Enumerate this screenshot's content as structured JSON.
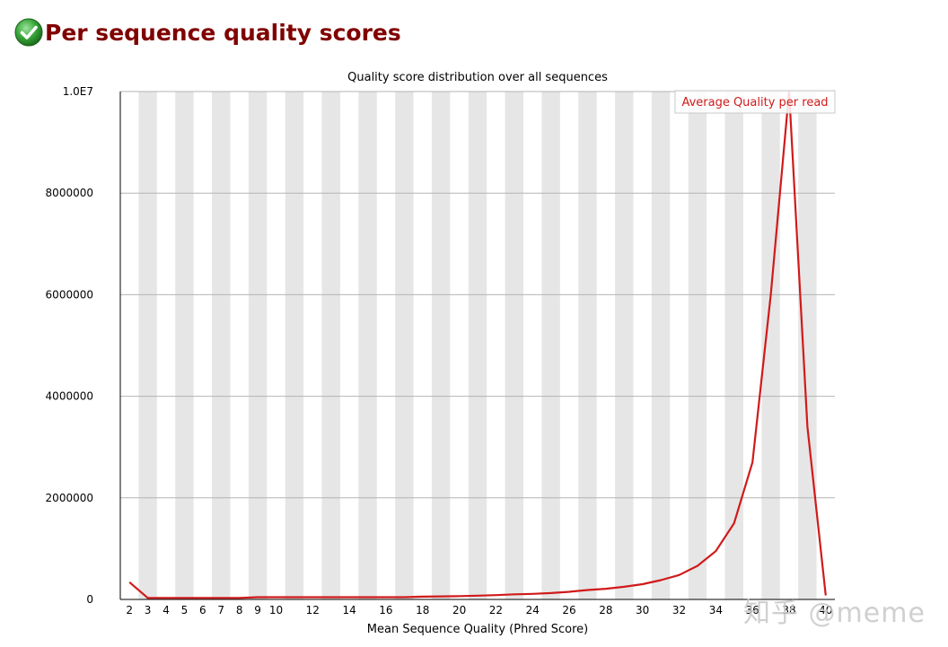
{
  "header": {
    "title": "Per sequence quality scores",
    "status_icon": "check-circle-icon",
    "status_color": "#2e8b2e"
  },
  "watermark": "知乎 @meme",
  "chart_data": {
    "type": "line",
    "title": "Quality score distribution over all sequences",
    "xlabel": "Mean Sequence Quality (Phred Score)",
    "ylabel": "",
    "xlim": [
      2,
      40
    ],
    "ylim": [
      0,
      10000000
    ],
    "yticks": [
      {
        "value": 0,
        "label": "0"
      },
      {
        "value": 2000000,
        "label": "2000000"
      },
      {
        "value": 4000000,
        "label": "4000000"
      },
      {
        "value": 6000000,
        "label": "6000000"
      },
      {
        "value": 8000000,
        "label": "8000000"
      },
      {
        "value": 10000000,
        "label": "1.0E7"
      }
    ],
    "xticks": [
      2,
      3,
      4,
      5,
      6,
      7,
      8,
      9,
      10,
      12,
      14,
      16,
      18,
      20,
      22,
      24,
      26,
      28,
      30,
      32,
      34,
      36,
      38,
      40
    ],
    "legend": {
      "position": "top-right",
      "label": "Average Quality per read"
    },
    "grid": true,
    "band_color": "#e6e6e6",
    "line_color": "#d11a1a",
    "series": [
      {
        "name": "Average Quality per read",
        "x": [
          2,
          3,
          4,
          5,
          6,
          7,
          8,
          9,
          10,
          11,
          12,
          13,
          14,
          15,
          16,
          17,
          18,
          19,
          20,
          21,
          22,
          23,
          24,
          25,
          26,
          27,
          28,
          29,
          30,
          31,
          32,
          33,
          34,
          35,
          36,
          37,
          38,
          39,
          40
        ],
        "values": [
          340000,
          30000,
          30000,
          30000,
          30000,
          30000,
          30000,
          45000,
          45000,
          45000,
          45000,
          45000,
          45000,
          45000,
          45000,
          45000,
          55000,
          60000,
          65000,
          75000,
          85000,
          100000,
          110000,
          125000,
          150000,
          185000,
          210000,
          250000,
          300000,
          380000,
          480000,
          660000,
          950000,
          1500000,
          2700000,
          6000000,
          10000000,
          3400000,
          80000
        ]
      }
    ]
  }
}
